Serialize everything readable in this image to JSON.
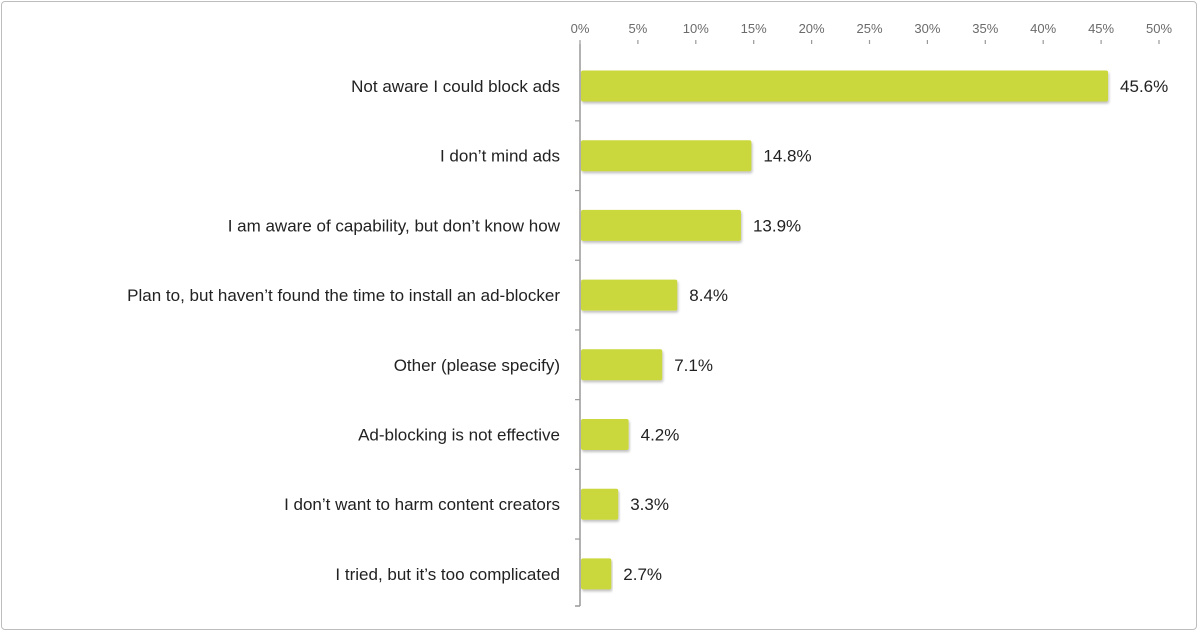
{
  "chart_data": {
    "type": "bar",
    "orientation": "horizontal",
    "title": "",
    "xlabel": "",
    "ylabel": "",
    "xlim": [
      0,
      50
    ],
    "tick_labels": [
      "0%",
      "5%",
      "10%",
      "15%",
      "20%",
      "25%",
      "30%",
      "35%",
      "40%",
      "45%",
      "50%"
    ],
    "tick_values": [
      0,
      5,
      10,
      15,
      20,
      25,
      30,
      35,
      40,
      45,
      50
    ],
    "categories": [
      "Not aware I could block ads",
      "I don’t mind ads",
      "I am aware of capability, but don’t know how",
      "Plan to, but haven’t found the time to install an ad-blocker",
      "Other (please specify)",
      "Ad-blocking is not effective",
      "I don’t want to harm content creators",
      "I tried, but it’s too complicated"
    ],
    "values": [
      45.6,
      14.8,
      13.9,
      8.4,
      7.1,
      4.2,
      3.3,
      2.7
    ],
    "data_labels": [
      "45.6%",
      "14.8%",
      "13.9%",
      "8.4%",
      "7.1%",
      "4.2%",
      "3.3%",
      "2.7%"
    ],
    "bar_color": "#cad83d",
    "grid": false,
    "legend": "none"
  }
}
